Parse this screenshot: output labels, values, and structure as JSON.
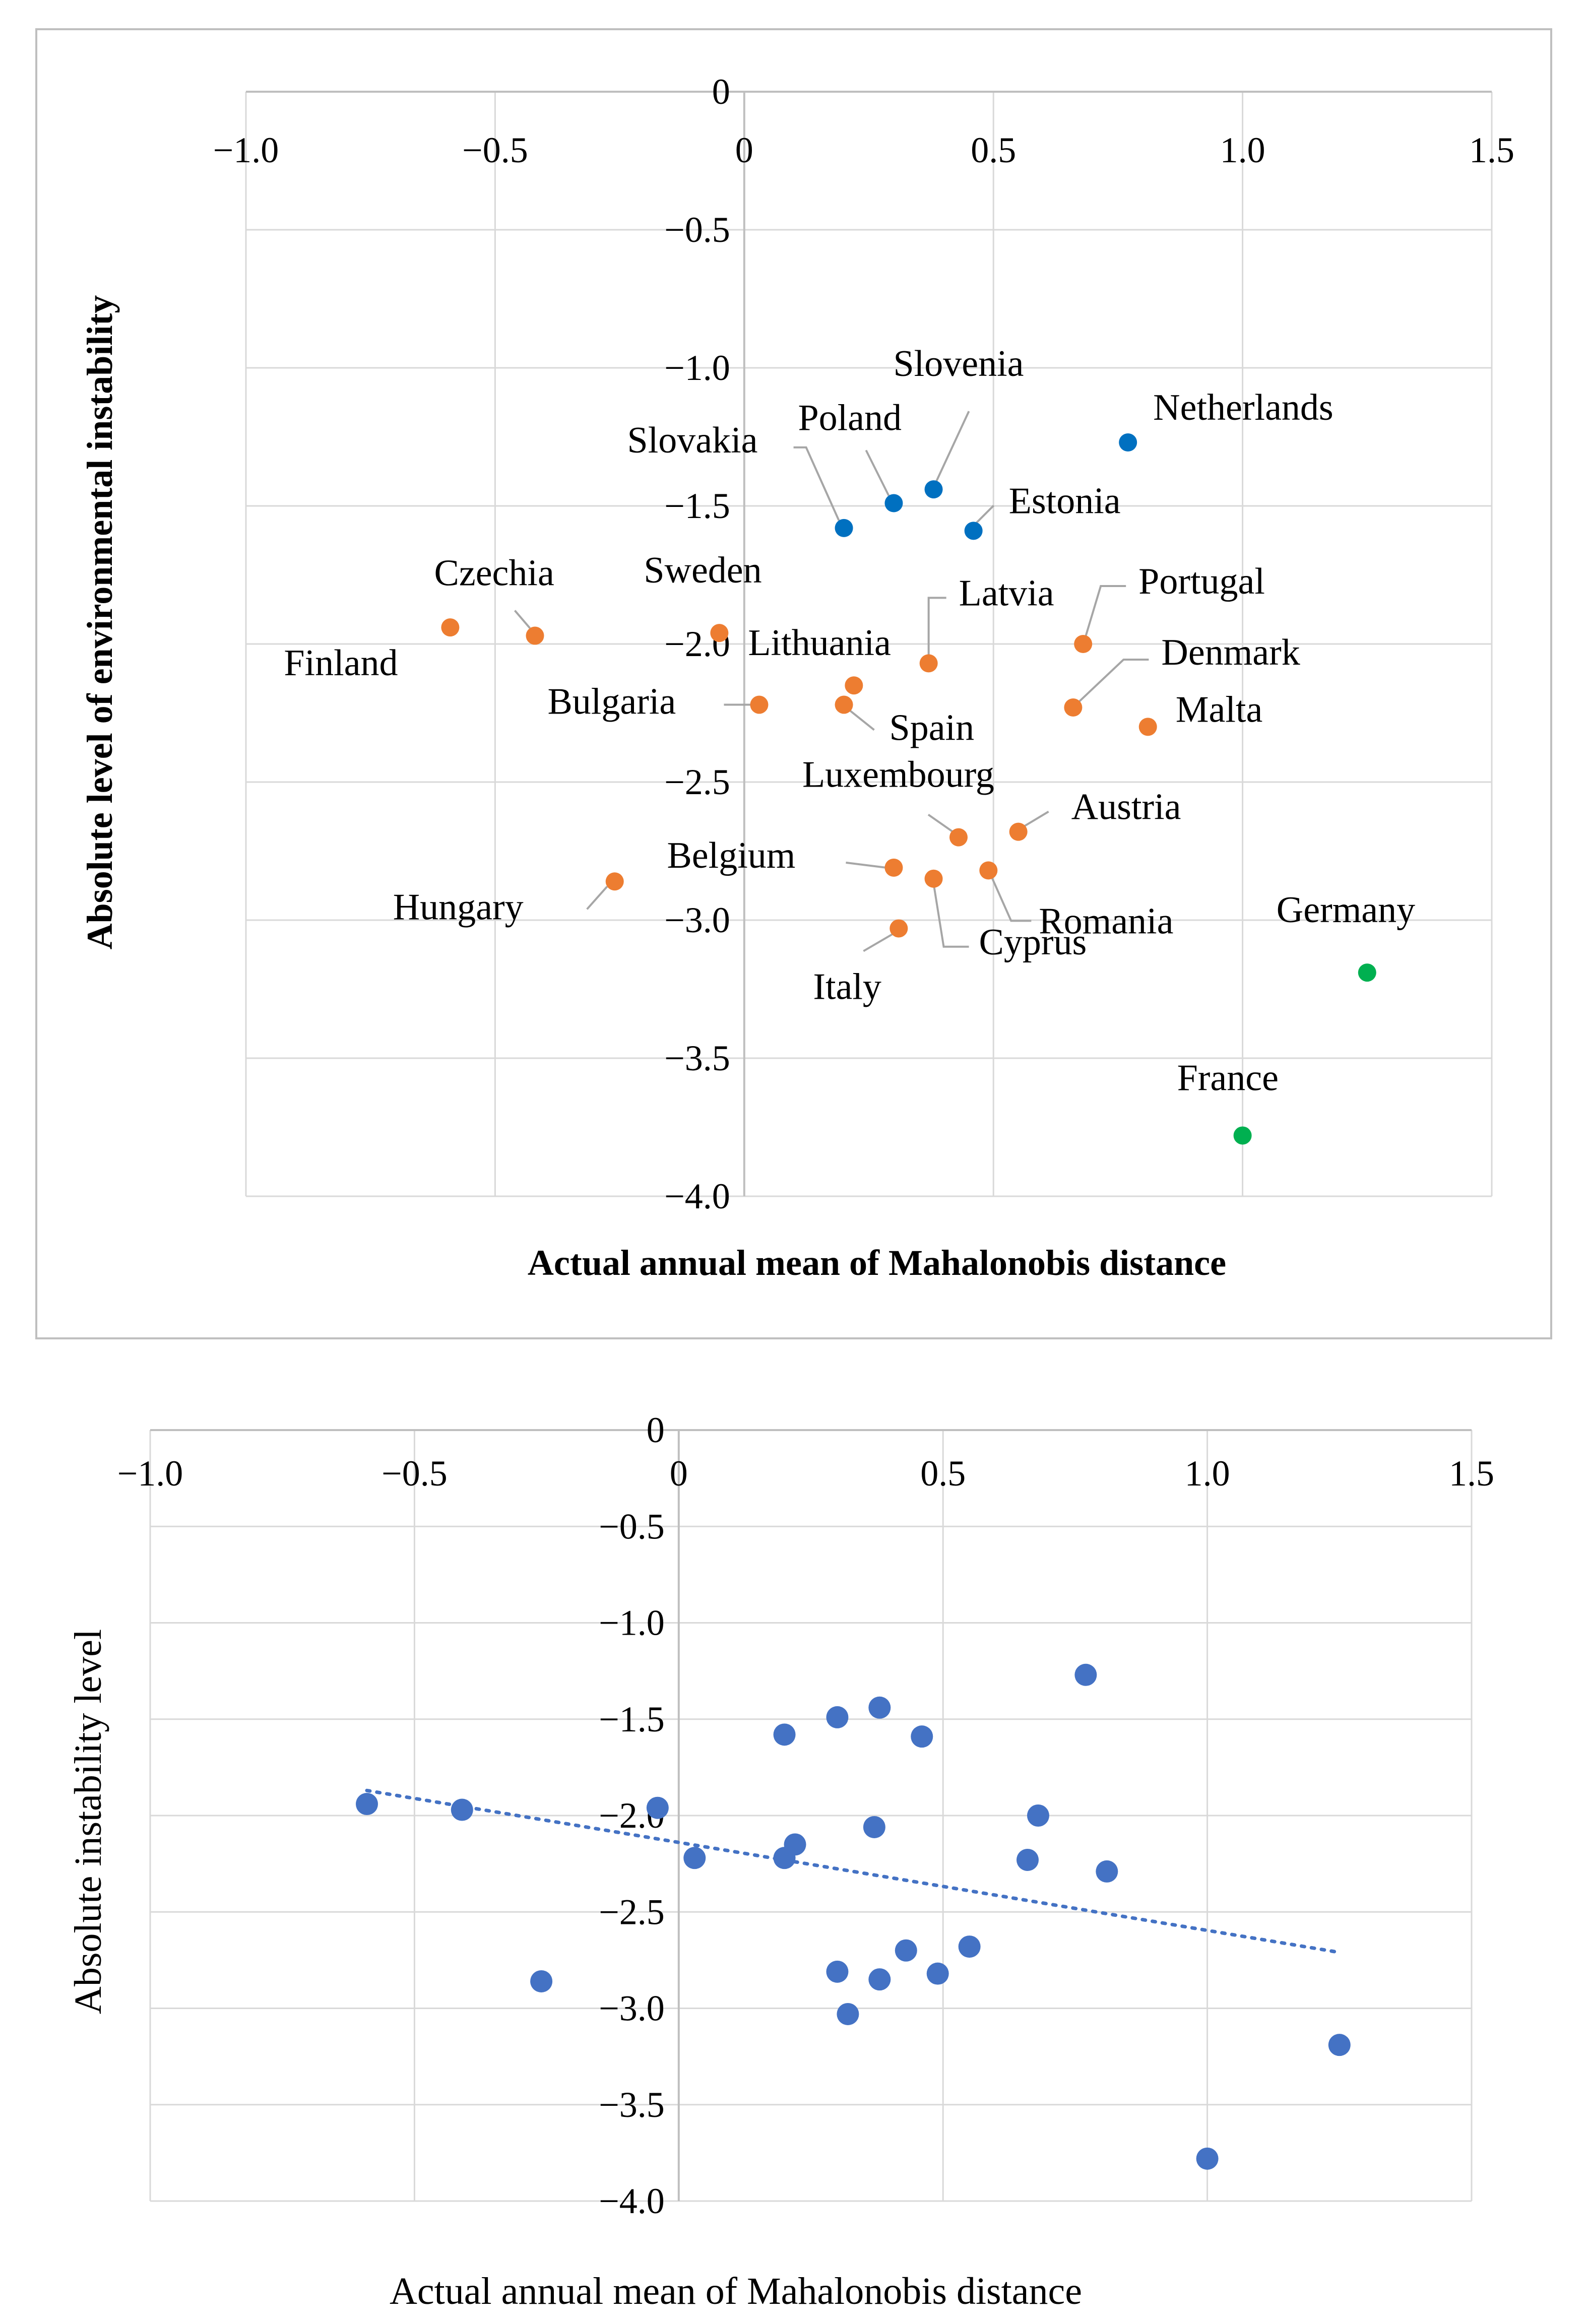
{
  "chart_data": [
    {
      "type": "scatter",
      "title": "",
      "xlabel": "Actual annual mean of Mahalonobis distance",
      "ylabel": "Absolute level of environmental instability",
      "xlim": [
        -1.0,
        1.5
      ],
      "ylim": [
        -4.0,
        0
      ],
      "x_ticks": [
        {
          "v": -1.0,
          "t": "−1.0"
        },
        {
          "v": -0.5,
          "t": "−0.5"
        },
        {
          "v": 0,
          "t": "0"
        },
        {
          "v": 0.5,
          "t": "0.5"
        },
        {
          "v": 1.0,
          "t": "1.0"
        },
        {
          "v": 1.5,
          "t": "1.5"
        }
      ],
      "y_ticks": [
        {
          "v": 0,
          "t": "0"
        },
        {
          "v": -0.5,
          "t": "−0.5"
        },
        {
          "v": -1.0,
          "t": "−1.0"
        },
        {
          "v": -1.5,
          "t": "−1.5"
        },
        {
          "v": -2.0,
          "t": "−2.0"
        },
        {
          "v": -2.5,
          "t": "−2.5"
        },
        {
          "v": -3.0,
          "t": "−3.0"
        },
        {
          "v": -3.5,
          "t": "−3.5"
        },
        {
          "v": -4.0,
          "t": "−4.0"
        }
      ],
      "grid": true,
      "colors": {
        "blue": "#0070c0",
        "orange": "#ed7d31",
        "green": "#00b050"
      },
      "points": [
        {
          "name": "Finland",
          "x": -0.59,
          "y": -1.94,
          "group": "orange"
        },
        {
          "name": "Czechia",
          "x": -0.42,
          "y": -1.97,
          "group": "orange"
        },
        {
          "name": "Sweden",
          "x": -0.05,
          "y": -1.96,
          "group": "orange"
        },
        {
          "name": "Bulgaria",
          "x": 0.03,
          "y": -2.22,
          "group": "orange"
        },
        {
          "name": "Lithuania",
          "x": 0.22,
          "y": -2.15,
          "group": "orange"
        },
        {
          "name": "Spain",
          "x": 0.2,
          "y": -2.22,
          "group": "orange"
        },
        {
          "name": "Latvia",
          "x": 0.37,
          "y": -2.07,
          "group": "orange"
        },
        {
          "name": "Portugal",
          "x": 0.68,
          "y": -2.0,
          "group": "orange"
        },
        {
          "name": "Denmark",
          "x": 0.66,
          "y": -2.23,
          "group": "orange"
        },
        {
          "name": "Malta",
          "x": 0.81,
          "y": -2.3,
          "group": "orange"
        },
        {
          "name": "Luxembourg",
          "x": 0.43,
          "y": -2.7,
          "group": "orange"
        },
        {
          "name": "Austria",
          "x": 0.55,
          "y": -2.68,
          "group": "orange"
        },
        {
          "name": "Belgium",
          "x": 0.3,
          "y": -2.81,
          "group": "orange"
        },
        {
          "name": "Romania",
          "x": 0.49,
          "y": -2.82,
          "group": "orange"
        },
        {
          "name": "Cyprus",
          "x": 0.38,
          "y": -2.85,
          "group": "orange"
        },
        {
          "name": "Hungary",
          "x": -0.26,
          "y": -2.86,
          "group": "orange"
        },
        {
          "name": "Italy",
          "x": 0.31,
          "y": -3.03,
          "group": "orange"
        },
        {
          "name": "Slovakia",
          "x": 0.2,
          "y": -1.58,
          "group": "blue"
        },
        {
          "name": "Poland",
          "x": 0.3,
          "y": -1.49,
          "group": "blue"
        },
        {
          "name": "Slovenia",
          "x": 0.38,
          "y": -1.44,
          "group": "blue"
        },
        {
          "name": "Estonia",
          "x": 0.46,
          "y": -1.59,
          "group": "blue"
        },
        {
          "name": "Netherlands",
          "x": 0.77,
          "y": -1.27,
          "group": "blue"
        },
        {
          "name": "Germany",
          "x": 1.25,
          "y": -3.19,
          "group": "green"
        },
        {
          "name": "France",
          "x": 1.0,
          "y": -3.78,
          "group": "green"
        }
      ]
    },
    {
      "type": "scatter",
      "title": "",
      "xlabel": "Actual annual mean of Mahalonobis distance",
      "ylabel": "Absolute instability level",
      "xlim": [
        -1.0,
        1.5
      ],
      "ylim": [
        -4.0,
        0
      ],
      "x_ticks": [
        {
          "v": -1.0,
          "t": "−1.0"
        },
        {
          "v": -0.5,
          "t": "−0.5"
        },
        {
          "v": 0,
          "t": "0"
        },
        {
          "v": 0.5,
          "t": "0.5"
        },
        {
          "v": 1.0,
          "t": "1.0"
        },
        {
          "v": 1.5,
          "t": "1.5"
        }
      ],
      "y_ticks": [
        {
          "v": 0,
          "t": "0"
        },
        {
          "v": -0.5,
          "t": "−0.5"
        },
        {
          "v": -1.0,
          "t": "−1.0"
        },
        {
          "v": -1.5,
          "t": "−1.5"
        },
        {
          "v": -2.0,
          "t": "−2.0"
        },
        {
          "v": -2.5,
          "t": "−2.5"
        },
        {
          "v": -3.0,
          "t": "−3.0"
        },
        {
          "v": -3.5,
          "t": "−3.5"
        },
        {
          "v": -4.0,
          "t": "−4.0"
        }
      ],
      "grid": true,
      "colors": {
        "point": "#4472c4",
        "trend": "#4472c4"
      },
      "trendline": {
        "x": [
          -0.59,
          1.25
        ],
        "y": [
          -1.87,
          -2.71
        ],
        "style": "dotted"
      },
      "points": [
        {
          "x": -0.59,
          "y": -1.94
        },
        {
          "x": -0.41,
          "y": -1.97
        },
        {
          "x": -0.04,
          "y": -1.96
        },
        {
          "x": 0.03,
          "y": -2.22
        },
        {
          "x": 0.2,
          "y": -1.58
        },
        {
          "x": 0.3,
          "y": -1.49
        },
        {
          "x": 0.38,
          "y": -1.44
        },
        {
          "x": 0.46,
          "y": -1.59
        },
        {
          "x": 0.77,
          "y": -1.27
        },
        {
          "x": 0.22,
          "y": -2.15
        },
        {
          "x": 0.2,
          "y": -2.22
        },
        {
          "x": 0.37,
          "y": -2.06
        },
        {
          "x": 0.68,
          "y": -2.0
        },
        {
          "x": 0.66,
          "y": -2.23
        },
        {
          "x": 0.81,
          "y": -2.29
        },
        {
          "x": 0.43,
          "y": -2.7
        },
        {
          "x": 0.55,
          "y": -2.68
        },
        {
          "x": 0.3,
          "y": -2.81
        },
        {
          "x": 0.49,
          "y": -2.82
        },
        {
          "x": 0.38,
          "y": -2.85
        },
        {
          "x": -0.26,
          "y": -2.86
        },
        {
          "x": 0.32,
          "y": -3.03
        },
        {
          "x": 1.25,
          "y": -3.19
        },
        {
          "x": 1.0,
          "y": -3.78
        }
      ]
    }
  ]
}
